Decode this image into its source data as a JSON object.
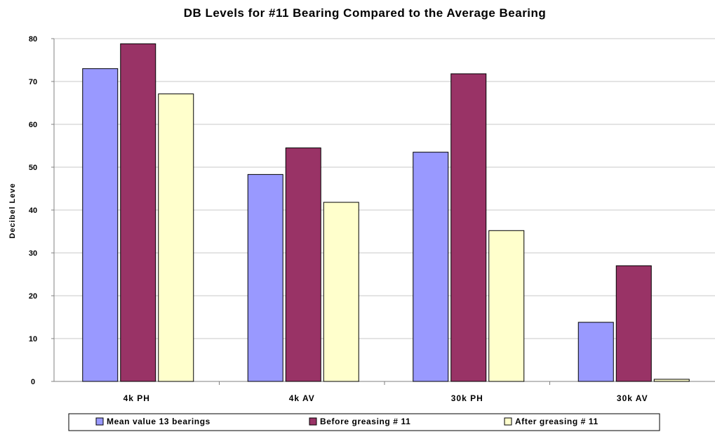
{
  "chart_data": {
    "type": "bar",
    "title": "DB Levels for #11 Bearing Compared to the Average Bearing",
    "xlabel": "",
    "ylabel": "Decibel Leve",
    "ylim": [
      0,
      80
    ],
    "yticks": [
      0,
      10,
      20,
      30,
      40,
      50,
      60,
      70,
      80
    ],
    "grid": true,
    "legend_position": "bottom",
    "categories": [
      "4k PH",
      "4k AV",
      "30k PH",
      "30k AV"
    ],
    "series": [
      {
        "name": "Mean value 13 bearings",
        "color": "#9999ff",
        "values": [
          73,
          48.3,
          53.5,
          13.8
        ]
      },
      {
        "name": "Before greasing # 11",
        "color": "#993366",
        "values": [
          78.8,
          54.5,
          71.8,
          27
        ]
      },
      {
        "name": "After greasing # 11",
        "color": "#ffffcc",
        "values": [
          67.1,
          41.8,
          35.2,
          0.5
        ]
      }
    ]
  }
}
